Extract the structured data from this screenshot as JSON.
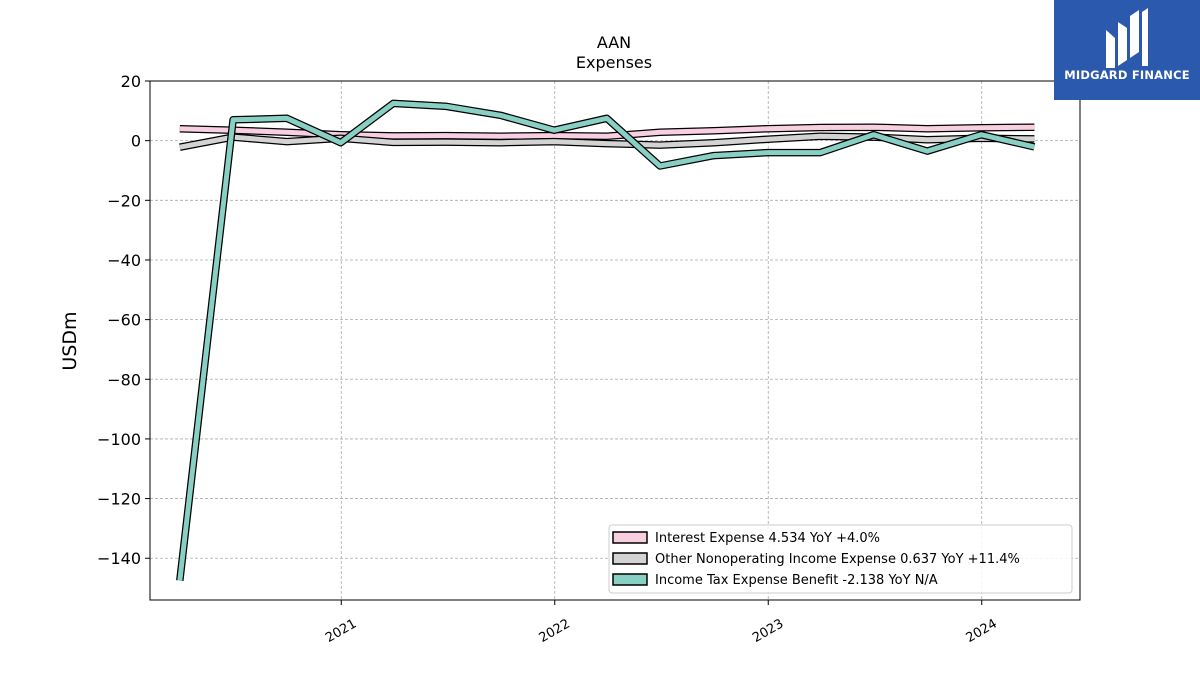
{
  "chart_data": {
    "type": "line",
    "title": "AAN",
    "subtitle": "Expenses",
    "ylabel": "USDm",
    "xlabel": "",
    "ylim": [
      -154,
      20
    ],
    "xlim": [
      "2020-02-09",
      "2024-06-17"
    ],
    "yticks": [
      20,
      0,
      -20,
      -40,
      -60,
      -80,
      -100,
      -120,
      -140
    ],
    "ytick_labels": [
      "20",
      "0",
      "−20",
      "−40",
      "−60",
      "−80",
      "−100",
      "−120",
      "−140"
    ],
    "xticks": [
      {
        "date": "2021-01-01",
        "label": "2021"
      },
      {
        "date": "2022-01-01",
        "label": "2022"
      },
      {
        "date": "2023-01-01",
        "label": "2023"
      },
      {
        "date": "2024-01-01",
        "label": "2024"
      }
    ],
    "grid": true,
    "legend_position": "lower-right",
    "x": [
      "2020-03-31",
      "2020-06-30",
      "2020-09-30",
      "2020-12-31",
      "2021-03-31",
      "2021-06-30",
      "2021-09-30",
      "2021-12-31",
      "2022-03-31",
      "2022-06-30",
      "2022-09-30",
      "2022-12-31",
      "2023-03-31",
      "2023-06-30",
      "2023-09-30",
      "2023-12-31",
      "2024-03-31"
    ],
    "series": [
      {
        "name": "Interest Expense  4.534 YoY +4.0%",
        "color": "#f7cfe0",
        "values": [
          4.0,
          3.5,
          2.8,
          2.0,
          1.6,
          1.7,
          1.5,
          1.7,
          1.5,
          2.8,
          3.3,
          4.0,
          4.4,
          4.5,
          4.0,
          4.3,
          4.5
        ]
      },
      {
        "name": "Other Nonoperating Income Expense  0.637 YoY +11.4%",
        "color": "#d3d3d3",
        "values": [
          -2.2,
          1.2,
          -0.3,
          0.8,
          -0.6,
          -0.5,
          -0.7,
          -0.3,
          -1.0,
          -1.5,
          -0.7,
          0.5,
          1.5,
          1.2,
          0.3,
          0.8,
          0.6
        ]
      },
      {
        "name": "Income Tax Expense Benefit  -2.138 YoY N/A",
        "color": "#88cfc4",
        "values": [
          -147.5,
          7.0,
          7.5,
          -0.7,
          12.5,
          11.5,
          8.5,
          3.5,
          7.5,
          -8.5,
          -5.0,
          -4.0,
          -4.0,
          2.0,
          -3.5,
          2.0,
          -2.1
        ]
      }
    ]
  },
  "watermark": {
    "brand": "MIDGARD FINANCE",
    "background": "#2b59ad"
  }
}
